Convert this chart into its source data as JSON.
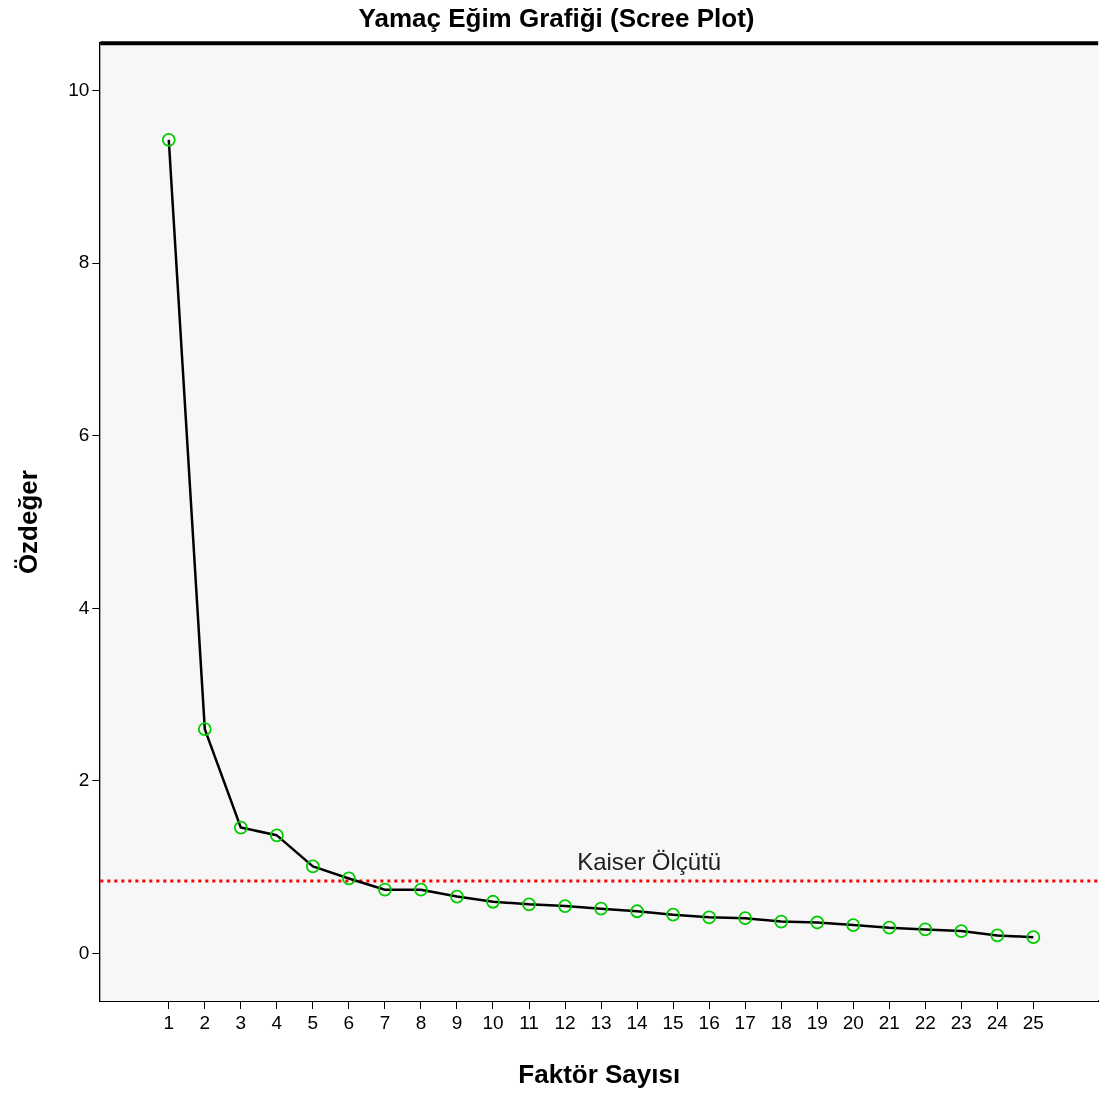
{
  "chart_data": {
    "type": "line",
    "title": "Yamaç Eğim Grafiği (Scree Plot)",
    "xlabel": "Faktör Sayısı",
    "ylabel": "Özdeğer",
    "x": [
      1,
      2,
      3,
      4,
      5,
      6,
      7,
      8,
      9,
      10,
      11,
      12,
      13,
      14,
      15,
      16,
      17,
      18,
      19,
      20,
      21,
      22,
      23,
      24,
      25
    ],
    "series": [
      {
        "color": "#000000",
        "colors": [
          "#00cc00",
          "#00cc00",
          "#00cc00",
          "#00cc00",
          "#00cc00",
          "#00cc00",
          "#00cc00",
          "#00cc00",
          "#00cc00",
          "#00cc00",
          "#00cc00",
          "#00cc00",
          "#00cc00",
          "#00cc00",
          "#00cc00",
          "#00cc00",
          "#00cc00",
          "#00cc00",
          "#00cc00",
          "#00cc00",
          "#00cc00",
          "#00cc00",
          "#00cc00",
          "#00cc00",
          "#00cc00"
        ],
        "values": [
          9.43,
          2.6,
          1.46,
          1.37,
          1.01,
          0.87,
          0.74,
          0.74,
          0.66,
          0.6,
          0.57,
          0.55,
          0.52,
          0.49,
          0.45,
          0.42,
          0.41,
          0.37,
          0.36,
          0.33,
          0.3,
          0.28,
          0.26,
          0.21,
          0.19
        ]
      }
    ],
    "marker": "circle",
    "xlim": [
      -0.9,
      26.8
    ],
    "xticks": [
      1,
      2,
      3,
      4,
      5,
      6,
      7,
      8,
      9,
      10,
      11,
      12,
      13,
      14,
      15,
      16,
      17,
      18,
      19,
      20,
      21,
      22,
      23,
      24,
      25
    ],
    "ylim": [
      -0.55,
      10.55
    ],
    "yticks": [
      0,
      2,
      4,
      6,
      8,
      10
    ],
    "ref_lines": [
      {
        "axis": "y",
        "value": 0.84,
        "label": "Kaiser Ölçütü",
        "color": "#ff0000",
        "line_style": "dotted"
      }
    ],
    "grid": false,
    "legend": false
  }
}
